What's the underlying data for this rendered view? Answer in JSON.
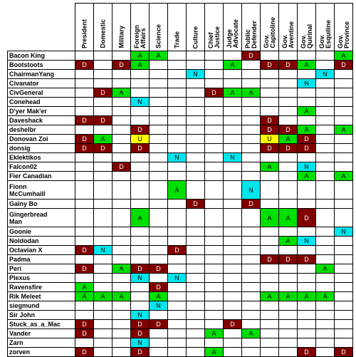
{
  "columns": [
    "President",
    "Domestic",
    "Military",
    "Foreign\nAffairs",
    "Science",
    "Trade",
    "Culture",
    "Chief\nJustice",
    "Judge\nAdvocate",
    "Public\nDefender",
    "Gov.\nCapitoline",
    "Gov.\nAventine",
    "Gov.\nQuirinal",
    "Gov.\nEsquiline",
    "Gov.\nProvince"
  ],
  "colors": {
    "A": "#00e000",
    "D": "#800000",
    "N": "#00e5ee",
    "U": "#ffff00"
  },
  "text_colors": {
    "A": "#000000",
    "D": "#ffffff",
    "N": "#000000",
    "U": "#000000"
  },
  "rows": [
    {
      "name": "Bacon King",
      "tall": false,
      "cells": [
        "",
        "",
        "",
        "A",
        "A",
        "",
        "",
        "",
        "",
        "D",
        "",
        "",
        "",
        "",
        "A"
      ]
    },
    {
      "name": "Bootstoots",
      "tall": false,
      "cells": [
        "D",
        "",
        "D",
        "A",
        "",
        "",
        "",
        "",
        "A",
        "",
        "D",
        "D",
        "A",
        "",
        "D"
      ]
    },
    {
      "name": "ChairmanYang",
      "tall": false,
      "cells": [
        "",
        "",
        "",
        "",
        "",
        "",
        "N",
        "",
        "",
        "",
        "",
        "",
        "",
        "N",
        ""
      ]
    },
    {
      "name": "Civanator",
      "tall": false,
      "cells": [
        "",
        "",
        "",
        "",
        "",
        "",
        "",
        "",
        "",
        "",
        "",
        "",
        "N",
        "",
        ""
      ]
    },
    {
      "name": "CivGeneral",
      "tall": false,
      "cells": [
        "",
        "D",
        "A",
        "",
        "",
        "",
        "",
        "D",
        "A",
        "A",
        "",
        "",
        "",
        "",
        ""
      ]
    },
    {
      "name": "Conehead",
      "tall": false,
      "cells": [
        "",
        "",
        "",
        "N",
        "",
        "",
        "",
        "",
        "",
        "",
        "",
        "",
        "",
        "",
        ""
      ]
    },
    {
      "name": "D'yer Mak'er",
      "tall": false,
      "cells": [
        "",
        "",
        "",
        "",
        "",
        "",
        "",
        "",
        "",
        "",
        "",
        "",
        "A",
        "",
        ""
      ]
    },
    {
      "name": "Daveshack",
      "tall": false,
      "cells": [
        "D",
        "D",
        "",
        "",
        "",
        "",
        "",
        "",
        "",
        "",
        "D",
        "",
        "",
        "",
        ""
      ]
    },
    {
      "name": "deshelbr",
      "tall": false,
      "cells": [
        "",
        "",
        "",
        "D",
        "",
        "",
        "",
        "",
        "",
        "",
        "D",
        "D",
        "A",
        "",
        "A"
      ]
    },
    {
      "name": "Donovan Zoi",
      "tall": false,
      "cells": [
        "D",
        "A",
        "",
        "U",
        "",
        "",
        "",
        "",
        "",
        "",
        "U",
        "A",
        "D",
        "",
        ""
      ]
    },
    {
      "name": "donsig",
      "tall": false,
      "cells": [
        "D",
        "D",
        "",
        "D",
        "",
        "",
        "",
        "",
        "",
        "",
        "D",
        "D",
        "D",
        "",
        ""
      ]
    },
    {
      "name": "Eklektikos",
      "tall": false,
      "cells": [
        "",
        "",
        "",
        "",
        "",
        "N",
        "",
        "",
        "N",
        "",
        "",
        "",
        "",
        "",
        ""
      ]
    },
    {
      "name": "Falcon02",
      "tall": false,
      "cells": [
        "",
        "",
        "D",
        "",
        "",
        "",
        "",
        "",
        "",
        "",
        "A",
        "",
        "N",
        "",
        ""
      ]
    },
    {
      "name": "Fier Canadian",
      "tall": false,
      "cells": [
        "",
        "",
        "",
        "",
        "",
        "",
        "",
        "",
        "",
        "",
        "",
        "",
        "A",
        "",
        "A"
      ]
    },
    {
      "name": "Fionn\nMcCumhaill",
      "tall": true,
      "cells": [
        "",
        "",
        "",
        "",
        "",
        "A",
        "",
        "",
        "",
        "N",
        "",
        "",
        "",
        "",
        ""
      ]
    },
    {
      "name": "Gainy Bo",
      "tall": false,
      "cells": [
        "",
        "",
        "",
        "",
        "",
        "",
        "D",
        "",
        "",
        "D",
        "",
        "",
        "",
        "",
        ""
      ]
    },
    {
      "name": "Gingerbread\nMan",
      "tall": true,
      "cells": [
        "",
        "",
        "",
        "A",
        "",
        "",
        "",
        "",
        "",
        "",
        "A",
        "A",
        "D",
        "",
        ""
      ]
    },
    {
      "name": "Goonie",
      "tall": false,
      "cells": [
        "",
        "",
        "",
        "",
        "",
        "",
        "",
        "",
        "",
        "",
        "",
        "",
        "",
        "",
        "N"
      ]
    },
    {
      "name": "Noldodan",
      "tall": false,
      "cells": [
        "",
        "",
        "",
        "",
        "",
        "",
        "",
        "",
        "",
        "",
        "",
        "A",
        "N",
        "",
        ""
      ]
    },
    {
      "name": "Octavian X",
      "tall": false,
      "cells": [
        "D",
        "N",
        "",
        "",
        "",
        "D",
        "",
        "",
        "",
        "",
        "",
        "",
        "",
        "",
        ""
      ]
    },
    {
      "name": "Padma",
      "tall": false,
      "cells": [
        "",
        "",
        "",
        "",
        "",
        "",
        "",
        "",
        "",
        "",
        "D",
        "D",
        "D",
        "",
        ""
      ]
    },
    {
      "name": "Peri",
      "tall": false,
      "cells": [
        "D",
        "",
        "A",
        "D",
        "D",
        "",
        "",
        "",
        "",
        "",
        "",
        "",
        "",
        "A",
        ""
      ]
    },
    {
      "name": "Plexus",
      "tall": false,
      "cells": [
        "",
        "",
        "",
        "N",
        "",
        "N",
        "",
        "",
        "",
        "",
        "",
        "",
        "",
        "",
        ""
      ]
    },
    {
      "name": "Ravensfire",
      "tall": false,
      "cells": [
        "A",
        "",
        "",
        "",
        "D",
        "",
        "",
        "",
        "",
        "",
        "",
        "",
        "",
        "",
        ""
      ]
    },
    {
      "name": "Rik Meleet",
      "tall": false,
      "cells": [
        "A",
        "A",
        "A",
        "",
        "A",
        "",
        "",
        "",
        "",
        "",
        "A",
        "A",
        "A",
        "A",
        ""
      ]
    },
    {
      "name": "siegmund",
      "tall": false,
      "cells": [
        "",
        "",
        "",
        "",
        "N",
        "",
        "",
        "",
        "",
        "",
        "",
        "",
        "",
        "",
        ""
      ]
    },
    {
      "name": "Sir John",
      "tall": false,
      "cells": [
        "",
        "",
        "",
        "N",
        "",
        "",
        "",
        "",
        "",
        "",
        "",
        "",
        "",
        "",
        ""
      ]
    },
    {
      "name": "Stuck_as_a_Mac",
      "tall": false,
      "cells": [
        "D",
        "",
        "",
        "D",
        "D",
        "",
        "",
        "",
        "D",
        "",
        "",
        "",
        "",
        "",
        ""
      ]
    },
    {
      "name": "Vander",
      "tall": false,
      "cells": [
        "D",
        "",
        "",
        "D",
        "",
        "",
        "",
        "A",
        "",
        "A",
        "",
        "",
        "",
        "",
        ""
      ]
    },
    {
      "name": "Zarn",
      "tall": false,
      "cells": [
        "",
        "",
        "",
        "N",
        "",
        "",
        "",
        "",
        "",
        "",
        "",
        "",
        "",
        "",
        ""
      ]
    },
    {
      "name": "zorven",
      "tall": false,
      "cells": [
        "D",
        "",
        "",
        "D",
        "",
        "",
        "",
        "A",
        "",
        "",
        "",
        "",
        "D",
        "",
        "D"
      ]
    }
  ]
}
